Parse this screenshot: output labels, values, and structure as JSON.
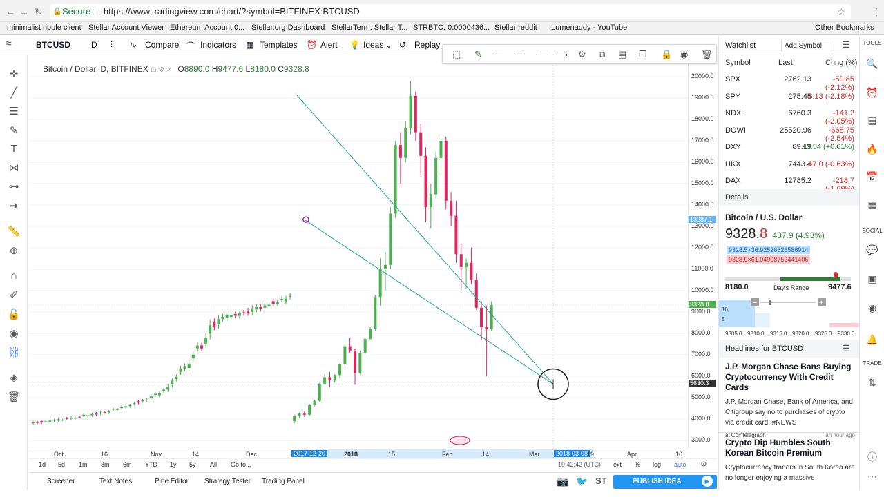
{
  "browser": {
    "secure_label": "Secure",
    "url": "https://www.tradingview.com/chart/?symbol=BITFINEX:BTCUSD",
    "bookmarks": [
      "minimalist ripple client",
      "Stellar Account Viewer",
      "Ethereum Account 0...",
      "Stellar.org Dashboard",
      "StellarTerm: Stellar T...",
      "STRBTC: 0.0000436...",
      "Stellar reddit",
      "Lumenaddy - YouTube",
      "Other Bookmarks"
    ]
  },
  "toolbar": {
    "symbol": "BTCUSD",
    "interval": "D",
    "compare": "Compare",
    "indicators": "Indicators",
    "templates": "Templates",
    "alert": "Alert",
    "ideas": "Ideas",
    "replay": "Replay"
  },
  "legend": {
    "title": "Bitcoin / Dollar, D, BITFINEX",
    "o_label": "O",
    "o": "8890.0",
    "h_label": "H",
    "h": "9477.6",
    "l_label": "L",
    "l": "8180.0",
    "c_label": "C",
    "c": "9328.8"
  },
  "price_axis": {
    "ticks": [
      "20000.0",
      "19000.0",
      "18000.0",
      "17000.0",
      "16000.0",
      "15000.0",
      "14000.0",
      "13000.0",
      "12000.0",
      "11000.0",
      "10000.0",
      "9000.0",
      "8000.0",
      "7000.0",
      "6000.0",
      "5000.0",
      "4000.0",
      "3000.0"
    ],
    "marker_top": "13287.1",
    "marker_last": "9328.8",
    "marker_cursor": "5630.3"
  },
  "time_axis": {
    "ticks": [
      "Oct",
      "16",
      "Nov",
      "14",
      "Dec",
      "2017-12-20",
      "2018",
      "15",
      "Feb",
      "14",
      "Mar",
      "2018-03-08",
      "19",
      "Apr",
      "16"
    ]
  },
  "range_bar": {
    "items": [
      "1d",
      "5d",
      "1m",
      "3m",
      "6m",
      "YTD",
      "1y",
      "5y",
      "All",
      "Go to..."
    ],
    "time": "19:42:42 (UTC)",
    "ext": "ext",
    "pct": "%",
    "log": "log",
    "auto": "auto"
  },
  "bottom_tabs": [
    "Screener",
    "Text Notes",
    "Pine Editor",
    "Strategy Tester",
    "Trading Panel"
  ],
  "publish": "PUBLISH IDEA",
  "chart_data": {
    "type": "candlestick",
    "symbol": "BITFINEX:BTCUSD",
    "interval": "D",
    "ylim": [
      2700,
      20500
    ],
    "x_range": [
      "2017-09-27",
      "2018-04-21"
    ],
    "last_close": 9328.8,
    "notable_points": [
      {
        "x": "2017-12-17",
        "y": 19891,
        "note": "peak"
      },
      {
        "x": "2018-02-06",
        "y": 6000,
        "note": "low"
      }
    ],
    "trendlines": [
      {
        "from": {
          "x": "2017-12-18",
          "y": 19200
        },
        "to": {
          "x": "2018-03-08",
          "y": 5630
        }
      },
      {
        "from": {
          "x": "2017-12-22",
          "y": 13287
        },
        "to": {
          "x": "2018-03-08",
          "y": 5630
        }
      }
    ],
    "candles_approx": [
      [
        3900,
        4200,
        3800,
        4150
      ],
      [
        4150,
        4300,
        4050,
        4250
      ],
      [
        4250,
        4350,
        4100,
        4200
      ],
      [
        4200,
        4700,
        4150,
        4650
      ],
      [
        4650,
        4900,
        4600,
        4850
      ],
      [
        4850,
        5700,
        4800,
        5650
      ],
      [
        5650,
        6100,
        5600,
        5950
      ],
      [
        5950,
        6200,
        5500,
        5800
      ],
      [
        5800,
        6100,
        5700,
        6050
      ],
      [
        6050,
        6600,
        5900,
        6550
      ],
      [
        6550,
        7500,
        6500,
        7400
      ],
      [
        7400,
        7800,
        7100,
        7200
      ],
      [
        7200,
        7300,
        5600,
        6150
      ],
      [
        6150,
        7200,
        6100,
        7100
      ],
      [
        7100,
        7800,
        7000,
        7750
      ],
      [
        7750,
        8300,
        7700,
        8200
      ],
      [
        8200,
        9800,
        8100,
        9700
      ],
      [
        9700,
        11500,
        9300,
        11000
      ],
      [
        11000,
        11800,
        10000,
        11200
      ],
      [
        11200,
        13900,
        11000,
        13600
      ],
      [
        13600,
        17000,
        13400,
        16800
      ],
      [
        16800,
        17400,
        15000,
        16200
      ],
      [
        16200,
        17900,
        16000,
        17600
      ],
      [
        17600,
        19800,
        17300,
        19100
      ],
      [
        19100,
        19300,
        17000,
        17400
      ],
      [
        17400,
        17800,
        15400,
        16300
      ],
      [
        16300,
        16700,
        13200,
        13900
      ],
      [
        13900,
        15000,
        12900,
        14500
      ],
      [
        14500,
        16500,
        14300,
        16200
      ],
      [
        16200,
        17200,
        15500,
        17000
      ],
      [
        17000,
        17200,
        13800,
        14200
      ],
      [
        14200,
        14600,
        13000,
        13500
      ],
      [
        13500,
        14200,
        11300,
        11700
      ],
      [
        11700,
        12200,
        10000,
        11100
      ],
      [
        11100,
        11500,
        10100,
        11300
      ],
      [
        11300,
        12000,
        10300,
        10500
      ],
      [
        10500,
        10800,
        9100,
        9200
      ],
      [
        9200,
        9500,
        7700,
        8300
      ],
      [
        8300,
        9300,
        6000,
        8200
      ],
      [
        8200,
        9500,
        8100,
        9328.8
      ]
    ]
  },
  "drawing_toolbar": {
    "icons": [
      "select-area-icon",
      "pencil-icon",
      "line-style-icon",
      "line-width-icon",
      "line-dash-icon",
      "line-end-icon",
      "gear-icon",
      "clone-icon",
      "layers-icon",
      "copy-icon",
      "lock-icon",
      "eye-icon",
      "trash-icon"
    ]
  },
  "watchlist": {
    "title": "Watchlist",
    "add_symbol": "Add Symbol",
    "headers": {
      "symbol": "Symbol",
      "last": "Last",
      "change": "Chng (%)"
    },
    "rows": [
      {
        "symbol": "SPX",
        "last": "2762.13",
        "change": "-59.85 (-2.12%)"
      },
      {
        "symbol": "SPY",
        "last": "275.45",
        "change": "-6.13 (-2.18%)"
      },
      {
        "symbol": "NDX",
        "last": "6760.3",
        "change": "-141.2 (-2.05%)"
      },
      {
        "symbol": "DOWI",
        "last": "25520.96",
        "change": "-665.75 (-2.54%)"
      },
      {
        "symbol": "DXY",
        "last": "89.19",
        "change": "+0.54 (+0.61%)"
      },
      {
        "symbol": "UKX",
        "last": "7443.4",
        "change": "-47.0 (-0.63%)"
      },
      {
        "symbol": "DAX",
        "last": "12785.2",
        "change": "-218.7 (-1.68%)"
      }
    ],
    "row_change_colors": [
      "#d32f2f",
      "#d32f2f",
      "#d32f2f",
      "#d32f2f",
      "#2e7d32",
      "#d32f2f",
      "#d32f2f"
    ]
  },
  "details": {
    "title": "Details",
    "name": "Bitcoin / U.S. Dollar",
    "price_main": "9328.",
    "price_last_digit": "8",
    "change": "437.9 (4.93%)",
    "bid": "9328.5×36.92526626586914",
    "ask": "9328.9×61.04908752441406",
    "range_low": "8180.0",
    "range_label": "Day's Range",
    "range_high": "9477.6",
    "range_position": 0.88,
    "depth_y": [
      "10",
      "5"
    ],
    "depth_x": [
      "9305.0",
      "9310.0",
      "9315.0",
      "9320.0",
      "9325.0",
      "9330.0"
    ]
  },
  "headlines": {
    "title": "Headlines for BTCUSD",
    "items": [
      {
        "title": "J.P. Morgan Chase Bans Buying Cryptocurrency With Credit Cards",
        "body": "J.P. Morgan Chase, Bank of America, and Citigroup say no to purchases of crypto via credit card. #NEWS",
        "source": "at Cointelegraph",
        "time": "an hour ago"
      },
      {
        "title": "Crypto Dip Humbles South Korean Bitcoin Premium",
        "body": "Cryptocurrency traders in South Korea are no longer enjoying a massive"
      }
    ]
  },
  "right_strip": {
    "tools": "TOOLS",
    "social": "SOCIAL",
    "trade": "TRADE"
  },
  "colors": {
    "up": "#26a69a",
    "down": "#e91e63",
    "up_candle": "#4caf50",
    "down_candle": "#e0245e",
    "trendline": "#26a69a",
    "accent": "#2962ff"
  }
}
